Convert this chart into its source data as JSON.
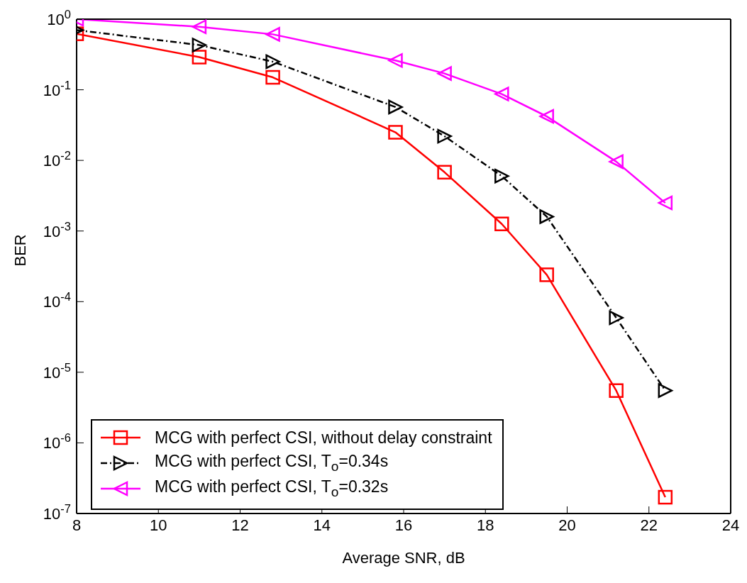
{
  "chart_data": {
    "type": "line",
    "xlabel": "Average SNR, dB",
    "ylabel": "BER",
    "log": "y",
    "x": [
      8,
      11,
      12.8,
      15.8,
      17,
      18.4,
      19.5,
      21.2,
      22.4
    ],
    "xlim": [
      8,
      24
    ],
    "xticks": [
      8,
      10,
      12,
      14,
      16,
      18,
      20,
      22,
      24
    ],
    "ylim": [
      1e-07,
      1
    ],
    "yticks": [
      {
        "value": 1,
        "label": "10$^{0}$"
      },
      {
        "value": 0.1,
        "label": "10$^{-1}$"
      },
      {
        "value": 0.01,
        "label": "10$^{-2}$"
      },
      {
        "value": 0.001,
        "label": "10$^{-3}$"
      },
      {
        "value": 0.0001,
        "label": "10$^{-4}$"
      },
      {
        "value": 1e-05,
        "label": "10$^{-5}$"
      },
      {
        "value": 1e-06,
        "label": "10$^{-6}$"
      },
      {
        "value": 1e-07,
        "label": "10$^{-7}$"
      }
    ],
    "grid": false,
    "legend": "bottom left",
    "series": [
      {
        "name": "MCG with perfect CSI, without delay constraint",
        "color": "#ff0000",
        "marker": "square",
        "line_style": "solid",
        "values": [
          0.62,
          0.29,
          0.15,
          0.025,
          0.0068,
          0.00126,
          0.00024,
          5.5e-06,
          1.7e-07
        ]
      },
      {
        "name": "MCG with perfect CSI, T$_{o}$=0.34s",
        "color": "#000000",
        "marker": "triangle-right",
        "line_style": "dashed",
        "values": [
          0.7,
          0.43,
          0.25,
          0.057,
          0.022,
          0.006,
          0.0016,
          5.9e-05,
          5.5e-06
        ]
      },
      {
        "name": "MCG with perfect CSI, T$_{o}$=0.32s",
        "color": "#ff00ff",
        "marker": "triangle-left",
        "line_style": "solid",
        "values": [
          1.0,
          0.78,
          0.61,
          0.26,
          0.17,
          0.087,
          0.042,
          0.0096,
          0.0025
        ]
      }
    ]
  }
}
